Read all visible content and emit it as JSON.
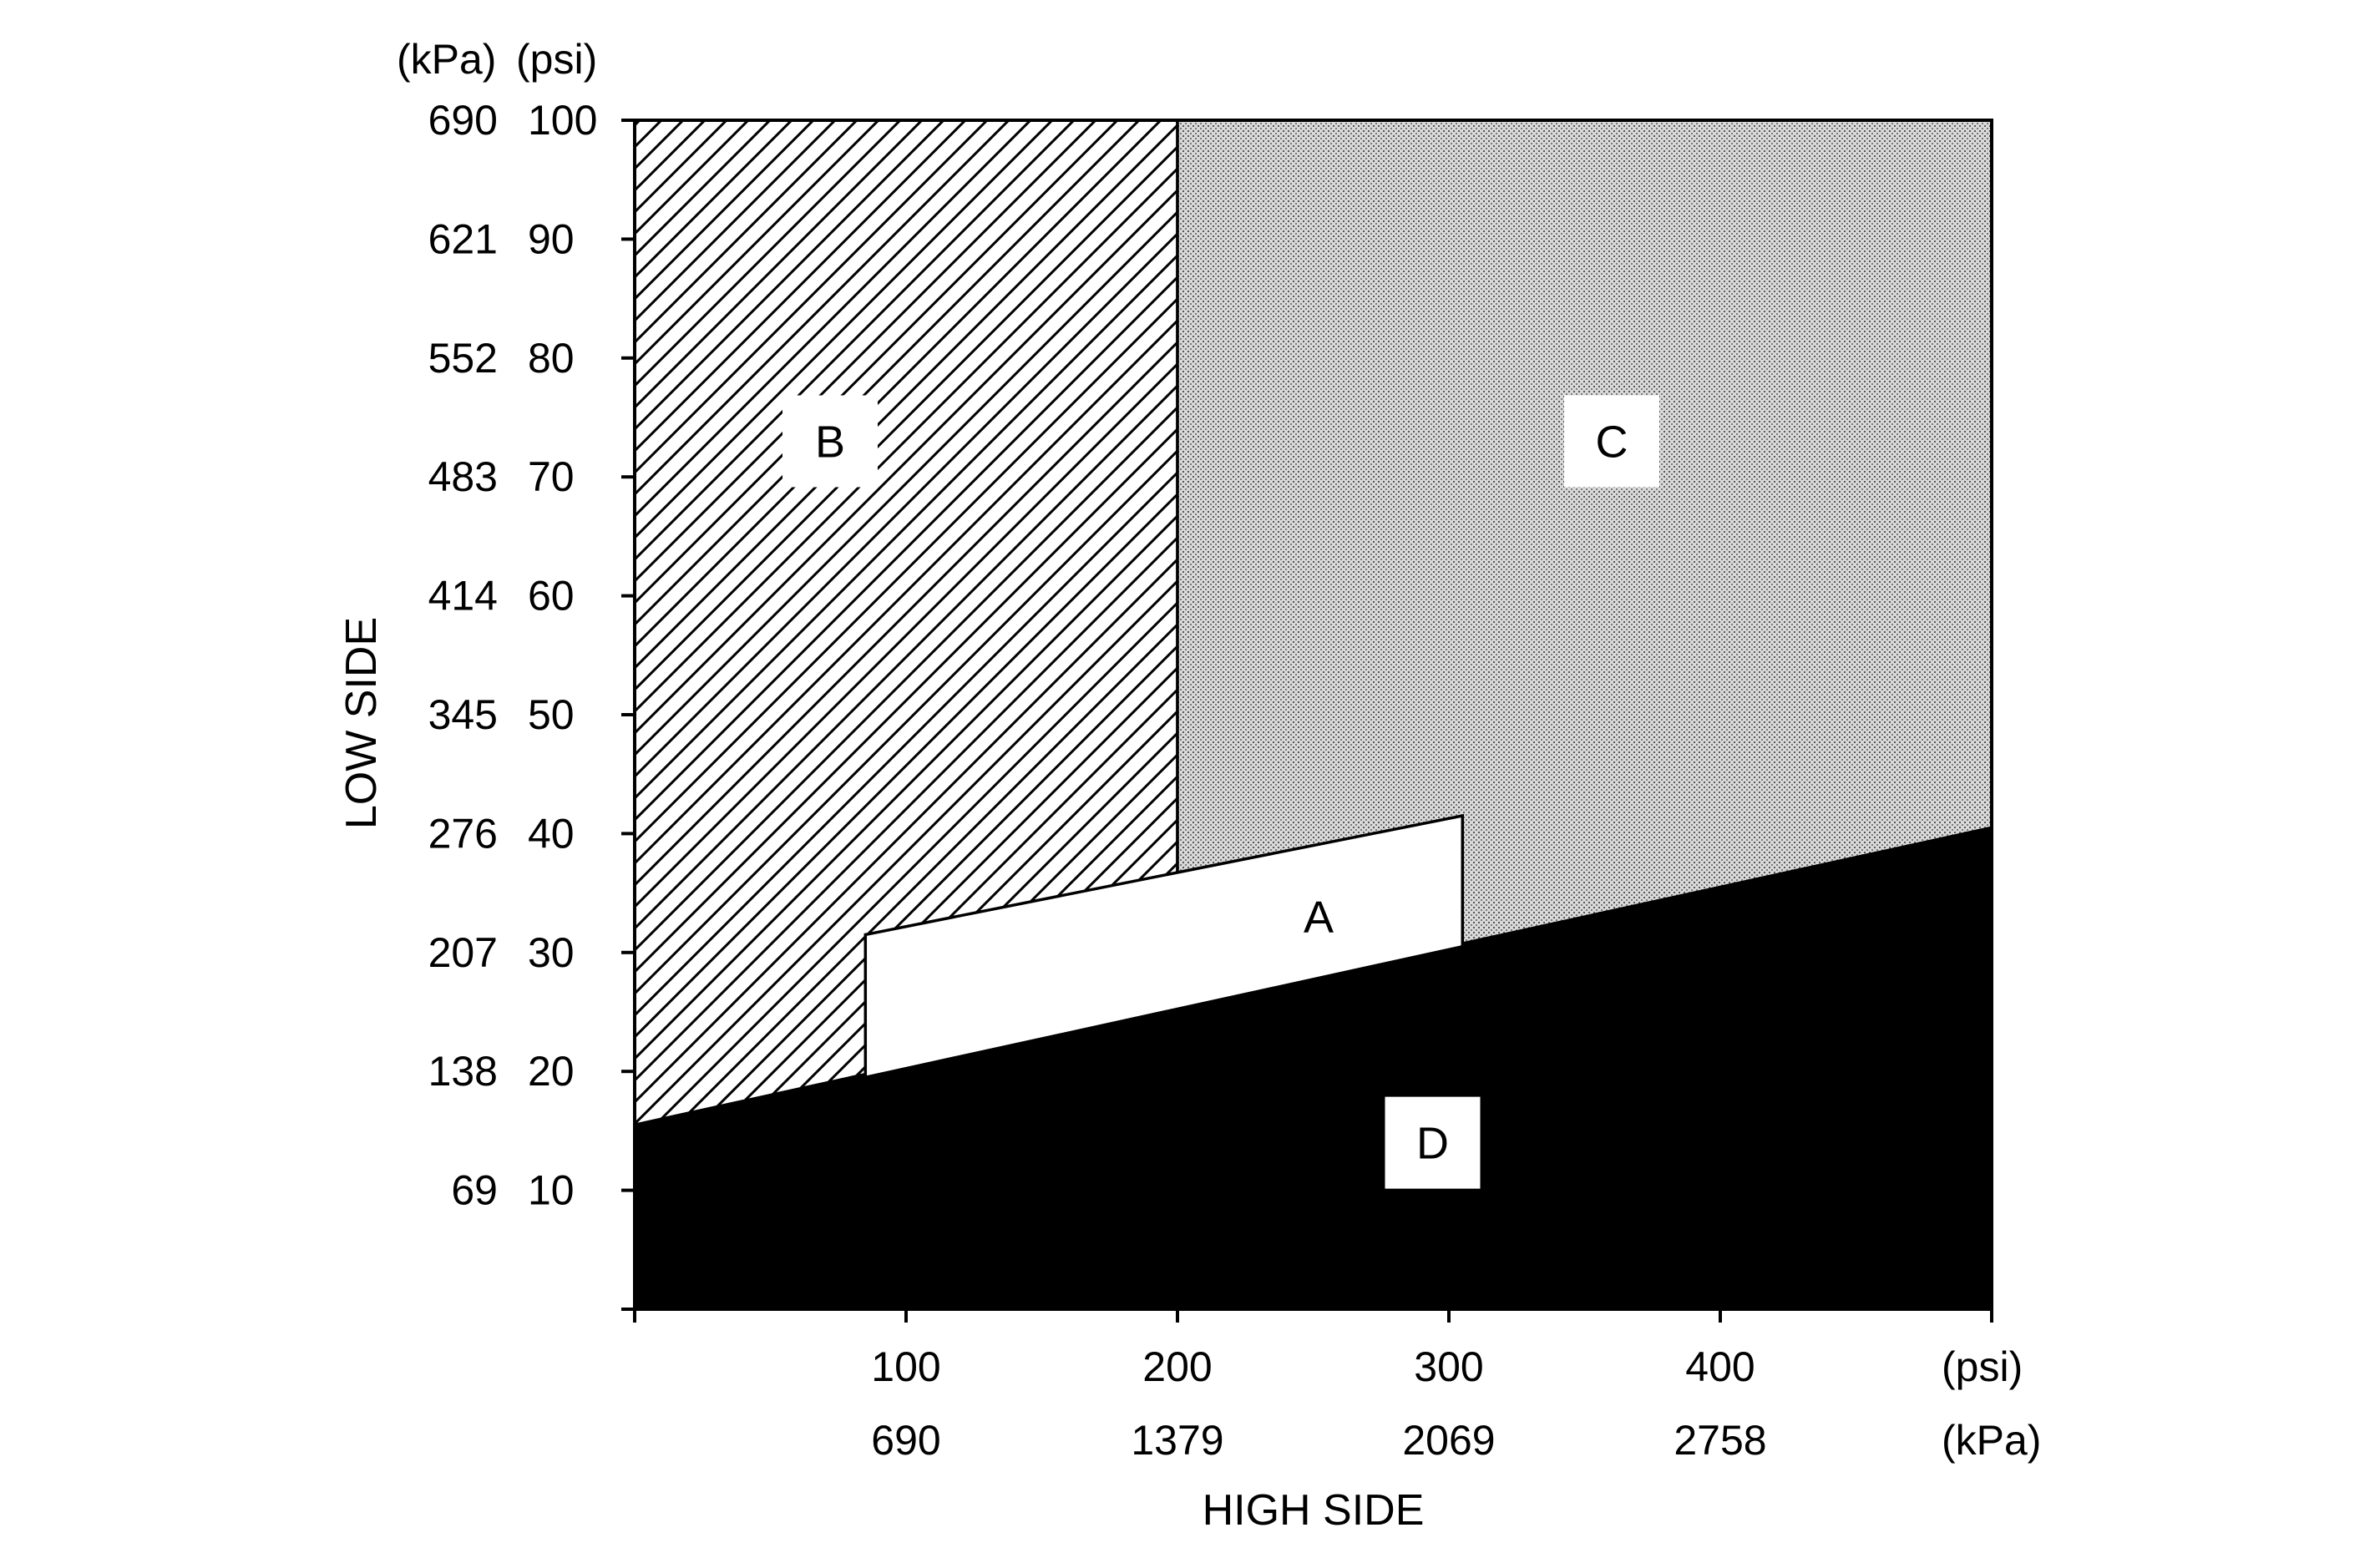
{
  "chart_data": {
    "type": "area",
    "x_axis": {
      "title": "HIGH SIDE",
      "range_psi": [
        0,
        500
      ],
      "ticks_psi": [
        100,
        200,
        300,
        400
      ],
      "ticks_kpa": [
        "690",
        "1379",
        "2069",
        "2758"
      ],
      "unit_primary": "(psi)",
      "unit_secondary": "(kPa)"
    },
    "y_axis": {
      "title": "LOW SIDE",
      "range_psi": [
        0,
        100
      ],
      "ticks_psi": [
        10,
        20,
        30,
        40,
        50,
        60,
        70,
        80,
        90,
        100
      ],
      "ticks_kpa": [
        "69",
        "138",
        "207",
        "276",
        "345",
        "414",
        "483",
        "552",
        "621",
        "690"
      ],
      "unit_psi": "(psi)",
      "unit_kpa": "(kPa)"
    },
    "regions": [
      {
        "label": "A",
        "fill": "white",
        "polygon_psi": [
          [
            85,
            19.5
          ],
          [
            305,
            30.5
          ],
          [
            305,
            41.5
          ],
          [
            85,
            31.5
          ]
        ],
        "label_at_psi": [
          252,
          33
        ]
      },
      {
        "label": "B",
        "fill": "diagonal-hatch",
        "polygon_psi": [
          [
            0,
            15.5
          ],
          [
            200,
            25.5
          ],
          [
            200,
            100
          ],
          [
            0,
            100
          ]
        ],
        "label_at_psi": [
          72,
          73
        ]
      },
      {
        "label": "C",
        "fill": "stipple-gray",
        "polygon_psi": [
          [
            200,
            25.5
          ],
          [
            500,
            40.5
          ],
          [
            500,
            100
          ],
          [
            200,
            100
          ]
        ],
        "label_at_psi": [
          360,
          73
        ]
      },
      {
        "label": "D",
        "fill": "black",
        "polygon_psi": [
          [
            0,
            0
          ],
          [
            500,
            0
          ],
          [
            500,
            40.5
          ],
          [
            0,
            15.5
          ]
        ],
        "label_at_psi": [
          294,
          14
        ]
      }
    ]
  }
}
